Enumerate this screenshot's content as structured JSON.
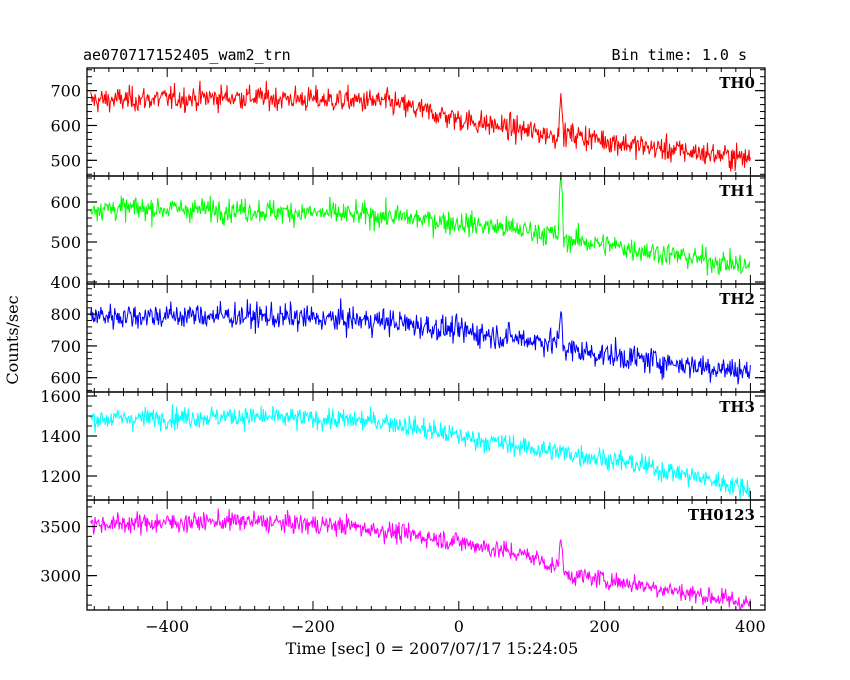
{
  "header": {
    "title": "ae070717152405_wam2_trn",
    "bin_time": "Bin time: 1.0 s"
  },
  "chart_data": {
    "type": "line",
    "xlabel": "Time [sec] 0 = 2007/07/17 15:24:05",
    "ylabel": "Counts/sec",
    "xlim": [
      -510,
      420
    ],
    "x_ticks": [
      -400,
      -200,
      0,
      200,
      400
    ],
    "x_tick_labels": [
      "−400",
      "−200",
      "0",
      "200",
      "400"
    ],
    "x_start": -505,
    "x_end": 400,
    "x_step": 1.0,
    "panels": [
      {
        "name": "TH0",
        "color": "#ff0000",
        "ylim": [
          455,
          765
        ],
        "y_ticks": [
          500,
          600,
          700
        ],
        "trend": [
          [
            -505,
            672
          ],
          [
            -300,
            682
          ],
          [
            -100,
            668
          ],
          [
            0,
            618
          ],
          [
            100,
            582
          ],
          [
            135,
            570
          ],
          [
            150,
            575
          ],
          [
            250,
            540
          ],
          [
            400,
            505
          ]
        ],
        "noise": 30,
        "spike": {
          "x": 140,
          "value": 690
        }
      },
      {
        "name": "TH1",
        "color": "#00ff00",
        "ylim": [
          395,
          665
        ],
        "y_ticks": [
          400,
          500,
          600
        ],
        "trend": [
          [
            -505,
            585
          ],
          [
            -300,
            580
          ],
          [
            -100,
            565
          ],
          [
            0,
            548
          ],
          [
            100,
            527
          ],
          [
            135,
            518
          ],
          [
            145,
            508
          ],
          [
            250,
            480
          ],
          [
            400,
            438
          ]
        ],
        "noise": 25,
        "spike": {
          "x": 140,
          "value": 660
        }
      },
      {
        "name": "TH2",
        "color": "#0000ff",
        "ylim": [
          555,
          895
        ],
        "y_ticks": [
          600,
          700,
          800
        ],
        "trend": [
          [
            -505,
            795
          ],
          [
            -300,
            795
          ],
          [
            -100,
            778
          ],
          [
            0,
            748
          ],
          [
            100,
            718
          ],
          [
            135,
            712
          ],
          [
            150,
            688
          ],
          [
            250,
            658
          ],
          [
            400,
            618
          ]
        ],
        "noise": 35,
        "spike": {
          "x": 140,
          "value": 815
        }
      },
      {
        "name": "TH3",
        "color": "#00ffff",
        "ylim": [
          1080,
          1620
        ],
        "y_ticks": [
          1200,
          1400,
          1600
        ],
        "trend": [
          [
            -505,
            1485
          ],
          [
            -300,
            1498
          ],
          [
            -100,
            1472
          ],
          [
            0,
            1398
          ],
          [
            100,
            1338
          ],
          [
            200,
            1288
          ],
          [
            300,
            1215
          ],
          [
            400,
            1135
          ]
        ],
        "noise": 45,
        "spike": null
      },
      {
        "name": "TH0123",
        "color": "#ff00ff",
        "ylim": [
          2650,
          3770
        ],
        "y_ticks": [
          3000,
          3500
        ],
        "trend": [
          [
            -505,
            3525
          ],
          [
            -300,
            3555
          ],
          [
            -150,
            3505
          ],
          [
            0,
            3345
          ],
          [
            100,
            3195
          ],
          [
            135,
            3080
          ],
          [
            150,
            3010
          ],
          [
            250,
            2905
          ],
          [
            400,
            2715
          ]
        ],
        "noise": 85,
        "spike": {
          "x": 140,
          "value": 3390
        }
      }
    ]
  }
}
